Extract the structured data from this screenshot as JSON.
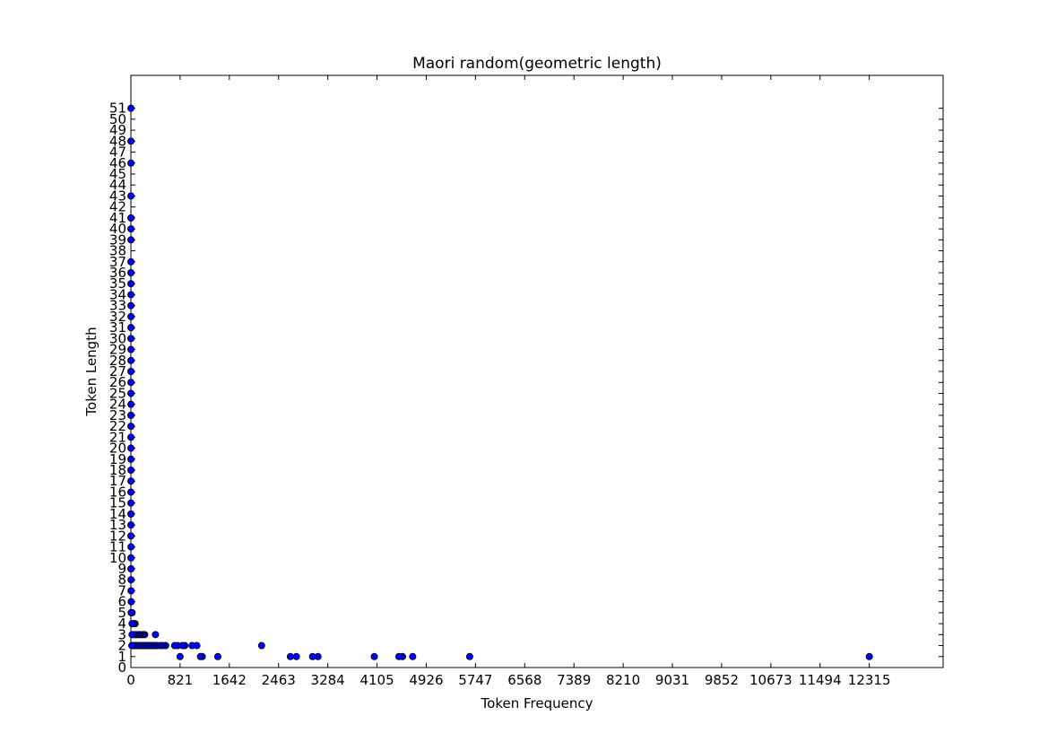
{
  "chart_data": {
    "type": "scatter",
    "title": "Maori random(geometric length)",
    "xlabel": "Token Frequency",
    "ylabel": "Token Length",
    "xlim": [
      0,
      13546
    ],
    "ylim": [
      0,
      54
    ],
    "xticks": [
      0,
      821,
      1642,
      2463,
      3284,
      4105,
      4926,
      5747,
      6568,
      7389,
      8210,
      9031,
      9852,
      10673,
      11494,
      12315
    ],
    "yticks": [
      0,
      1,
      2,
      3,
      4,
      5,
      6,
      7,
      8,
      9,
      10,
      11,
      12,
      13,
      14,
      15,
      16,
      17,
      18,
      19,
      20,
      21,
      22,
      23,
      24,
      25,
      26,
      27,
      28,
      29,
      30,
      31,
      32,
      33,
      34,
      35,
      36,
      37,
      38,
      39,
      40,
      41,
      42,
      43,
      44,
      45,
      46,
      47,
      48,
      49,
      50,
      51
    ],
    "grid": false,
    "marker_color": "#0000ff",
    "points": [
      {
        "x": 12315,
        "y": 1
      },
      {
        "x": 5650,
        "y": 1
      },
      {
        "x": 4700,
        "y": 1
      },
      {
        "x": 4530,
        "y": 1
      },
      {
        "x": 4470,
        "y": 1
      },
      {
        "x": 4060,
        "y": 1
      },
      {
        "x": 3120,
        "y": 1
      },
      {
        "x": 3030,
        "y": 1
      },
      {
        "x": 2760,
        "y": 1
      },
      {
        "x": 2660,
        "y": 1
      },
      {
        "x": 1450,
        "y": 1
      },
      {
        "x": 1190,
        "y": 1
      },
      {
        "x": 1160,
        "y": 1
      },
      {
        "x": 820,
        "y": 1
      },
      {
        "x": 2180,
        "y": 2
      },
      {
        "x": 1100,
        "y": 2
      },
      {
        "x": 1020,
        "y": 2
      },
      {
        "x": 900,
        "y": 2
      },
      {
        "x": 860,
        "y": 2
      },
      {
        "x": 780,
        "y": 2
      },
      {
        "x": 730,
        "y": 2
      },
      {
        "x": 580,
        "y": 2
      },
      {
        "x": 530,
        "y": 2
      },
      {
        "x": 490,
        "y": 2
      },
      {
        "x": 440,
        "y": 2
      },
      {
        "x": 400,
        "y": 2
      },
      {
        "x": 370,
        "y": 2
      },
      {
        "x": 340,
        "y": 2
      },
      {
        "x": 310,
        "y": 2
      },
      {
        "x": 280,
        "y": 2
      },
      {
        "x": 250,
        "y": 2
      },
      {
        "x": 220,
        "y": 2
      },
      {
        "x": 190,
        "y": 2
      },
      {
        "x": 160,
        "y": 2
      },
      {
        "x": 130,
        "y": 2
      },
      {
        "x": 100,
        "y": 2
      },
      {
        "x": 70,
        "y": 2
      },
      {
        "x": 40,
        "y": 2
      },
      {
        "x": 15,
        "y": 2
      },
      {
        "x": 410,
        "y": 3
      },
      {
        "x": 230,
        "y": 3
      },
      {
        "x": 200,
        "y": 3
      },
      {
        "x": 170,
        "y": 3
      },
      {
        "x": 140,
        "y": 3
      },
      {
        "x": 110,
        "y": 3
      },
      {
        "x": 80,
        "y": 3
      },
      {
        "x": 50,
        "y": 3
      },
      {
        "x": 20,
        "y": 3
      },
      {
        "x": 70,
        "y": 4
      },
      {
        "x": 45,
        "y": 4
      },
      {
        "x": 20,
        "y": 4
      },
      {
        "x": 20,
        "y": 5
      },
      {
        "x": 5,
        "y": 5
      },
      {
        "x": 5,
        "y": 6
      },
      {
        "x": 3,
        "y": 7
      },
      {
        "x": 3,
        "y": 8
      },
      {
        "x": 2,
        "y": 9
      },
      {
        "x": 2,
        "y": 10
      },
      {
        "x": 2,
        "y": 11
      },
      {
        "x": 1,
        "y": 12
      },
      {
        "x": 1,
        "y": 13
      },
      {
        "x": 1,
        "y": 14
      },
      {
        "x": 1,
        "y": 15
      },
      {
        "x": 1,
        "y": 16
      },
      {
        "x": 1,
        "y": 17
      },
      {
        "x": 1,
        "y": 18
      },
      {
        "x": 1,
        "y": 19
      },
      {
        "x": 1,
        "y": 20
      },
      {
        "x": 1,
        "y": 21
      },
      {
        "x": 1,
        "y": 22
      },
      {
        "x": 1,
        "y": 23
      },
      {
        "x": 1,
        "y": 24
      },
      {
        "x": 1,
        "y": 25
      },
      {
        "x": 1,
        "y": 26
      },
      {
        "x": 1,
        "y": 27
      },
      {
        "x": 1,
        "y": 28
      },
      {
        "x": 1,
        "y": 29
      },
      {
        "x": 1,
        "y": 30
      },
      {
        "x": 1,
        "y": 31
      },
      {
        "x": 1,
        "y": 32
      },
      {
        "x": 1,
        "y": 33
      },
      {
        "x": 1,
        "y": 34
      },
      {
        "x": 1,
        "y": 35
      },
      {
        "x": 1,
        "y": 36
      },
      {
        "x": 1,
        "y": 37
      },
      {
        "x": 1,
        "y": 39
      },
      {
        "x": 1,
        "y": 40
      },
      {
        "x": 1,
        "y": 41
      },
      {
        "x": 1,
        "y": 43
      },
      {
        "x": 1,
        "y": 46
      },
      {
        "x": 1,
        "y": 48
      },
      {
        "x": 1,
        "y": 51
      }
    ]
  }
}
